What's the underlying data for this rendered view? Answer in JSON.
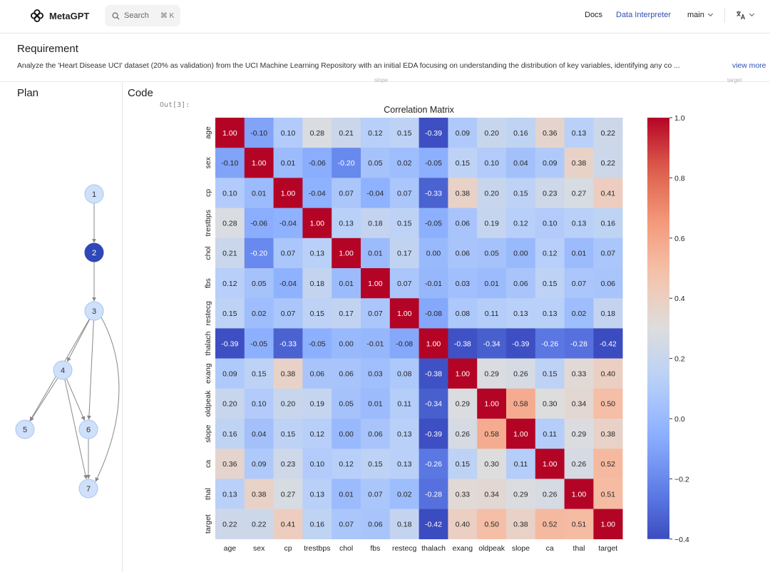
{
  "header": {
    "logo_text": "MetaGPT",
    "search_placeholder": "Search",
    "search_shortcut": "⌘ K",
    "nav": {
      "docs": "Docs",
      "data_interpreter": "Data Interpreter",
      "branch": "main"
    },
    "icons": {
      "logo": "metagpt-logo-icon",
      "search": "search-icon",
      "language": "translate-icon"
    },
    "accent_color": "#2f4fb5"
  },
  "requirement": {
    "title": "Requirement",
    "text": "Analyze the 'Heart Disease UCI' dataset (20% as validation) from the UCI Machine Learning Repository with an initial EDA focusing on understanding the distribution of key variables, identifying any co ...",
    "view_more": "view more"
  },
  "plan": {
    "title": "Plan",
    "active_node": "2",
    "nodes": [
      "1",
      "2",
      "3",
      "4",
      "5",
      "6",
      "7"
    ],
    "edges": [
      [
        "1",
        "2"
      ],
      [
        "2",
        "3"
      ],
      [
        "3",
        "4"
      ],
      [
        "3",
        "5"
      ],
      [
        "3",
        "6"
      ],
      [
        "3",
        "7"
      ],
      [
        "4",
        "5"
      ],
      [
        "4",
        "6"
      ],
      [
        "4",
        "7"
      ],
      [
        "6",
        "7"
      ]
    ],
    "colors": {
      "node": "#cfe0fa",
      "node_stroke": "#a9c4ee",
      "active": "#2f47b8",
      "edge": "#888888"
    }
  },
  "code": {
    "title": "Code",
    "out_label": "Out[3]:",
    "ghost_labels": [
      "slope",
      "target"
    ]
  },
  "chart_data": {
    "type": "heatmap",
    "title": "Correlation Matrix",
    "labels": [
      "age",
      "sex",
      "cp",
      "trestbps",
      "chol",
      "fbs",
      "restecg",
      "thalach",
      "exang",
      "oldpeak",
      "slope",
      "ca",
      "thal",
      "target"
    ],
    "values": [
      [
        1.0,
        -0.1,
        0.1,
        0.28,
        0.21,
        0.12,
        0.15,
        -0.39,
        0.09,
        0.2,
        0.16,
        0.36,
        0.13,
        0.22
      ],
      [
        -0.1,
        1.0,
        0.01,
        -0.06,
        -0.2,
        0.05,
        0.02,
        -0.05,
        0.15,
        0.1,
        0.04,
        0.09,
        0.38,
        0.22
      ],
      [
        0.1,
        0.01,
        1.0,
        -0.04,
        0.07,
        -0.04,
        0.07,
        -0.33,
        0.38,
        0.2,
        0.15,
        0.23,
        0.27,
        0.41
      ],
      [
        0.28,
        -0.06,
        -0.04,
        1.0,
        0.13,
        0.18,
        0.15,
        -0.05,
        0.06,
        0.19,
        0.12,
        0.1,
        0.13,
        0.16
      ],
      [
        0.21,
        -0.2,
        0.07,
        0.13,
        1.0,
        0.01,
        0.17,
        -0.0,
        0.06,
        0.05,
        -0.0,
        0.12,
        0.01,
        0.07
      ],
      [
        0.12,
        0.05,
        -0.04,
        0.18,
        0.01,
        1.0,
        0.07,
        -0.01,
        0.03,
        0.01,
        0.06,
        0.15,
        0.07,
        0.06
      ],
      [
        0.15,
        0.02,
        0.07,
        0.15,
        0.17,
        0.07,
        1.0,
        -0.08,
        0.08,
        0.11,
        0.13,
        0.13,
        0.02,
        0.18
      ],
      [
        -0.39,
        -0.05,
        -0.33,
        -0.05,
        -0.0,
        -0.01,
        -0.08,
        1.0,
        -0.38,
        -0.34,
        -0.39,
        -0.26,
        -0.28,
        -0.42
      ],
      [
        0.09,
        0.15,
        0.38,
        0.06,
        0.06,
        0.03,
        0.08,
        -0.38,
        1.0,
        0.29,
        0.26,
        0.15,
        0.33,
        0.4
      ],
      [
        0.2,
        0.1,
        0.2,
        0.19,
        0.05,
        0.01,
        0.11,
        -0.34,
        0.29,
        1.0,
        0.58,
        0.3,
        0.34,
        0.5
      ],
      [
        0.16,
        0.04,
        0.15,
        0.12,
        -0.0,
        0.06,
        0.13,
        -0.39,
        0.26,
        0.58,
        1.0,
        0.11,
        0.29,
        0.38
      ],
      [
        0.36,
        0.09,
        0.23,
        0.1,
        0.12,
        0.15,
        0.13,
        -0.26,
        0.15,
        0.3,
        0.11,
        1.0,
        0.26,
        0.52
      ],
      [
        0.13,
        0.38,
        0.27,
        0.13,
        0.01,
        0.07,
        0.02,
        -0.28,
        0.33,
        0.34,
        0.29,
        0.26,
        1.0,
        0.51
      ],
      [
        0.22,
        0.22,
        0.41,
        0.16,
        0.07,
        0.06,
        0.18,
        -0.42,
        0.4,
        0.5,
        0.38,
        0.52,
        0.51,
        1.0
      ]
    ],
    "vmin": -0.4,
    "vmax": 1.0,
    "colormap": "coolwarm",
    "colorbar_ticks": [
      "1.0",
      "0.8",
      "0.6",
      "0.4",
      "0.2",
      "0.0",
      "−0.2",
      "−0.4"
    ],
    "colorbar_tick_values": [
      1.0,
      0.8,
      0.6,
      0.4,
      0.2,
      0.0,
      -0.2,
      -0.4
    ]
  }
}
